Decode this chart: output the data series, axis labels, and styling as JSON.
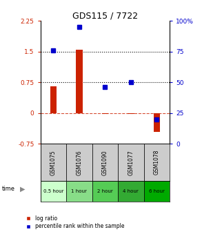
{
  "title": "GDS115 / 7722",
  "samples": [
    "GSM1075",
    "GSM1076",
    "GSM1090",
    "GSM1077",
    "GSM1078"
  ],
  "time_labels": [
    "0.5 hour",
    "1 hour",
    "2 hour",
    "4 hour",
    "6 hour"
  ],
  "log_ratio": [
    0.65,
    1.55,
    -0.02,
    -0.02,
    -0.45
  ],
  "percentile": [
    76,
    95,
    46,
    50,
    20
  ],
  "ylim_left": [
    -0.75,
    2.25
  ],
  "ylim_right": [
    0,
    100
  ],
  "yticks_left": [
    -0.75,
    0,
    0.75,
    1.5,
    2.25
  ],
  "yticks_right": [
    0,
    25,
    50,
    75,
    100
  ],
  "hline_dotted": [
    0.75,
    1.5
  ],
  "hline_dashed": 0,
  "bar_color": "#cc2200",
  "dot_color": "#0000cc",
  "sample_bg": "#cccccc",
  "time_colors": [
    "#ccffcc",
    "#88dd88",
    "#55cc55",
    "#33aa33",
    "#00aa00"
  ],
  "legend_log_ratio": "log ratio",
  "legend_percentile": "percentile rank within the sample",
  "title_fontsize": 9,
  "tick_fontsize": 6.5,
  "bar_width": 0.25
}
